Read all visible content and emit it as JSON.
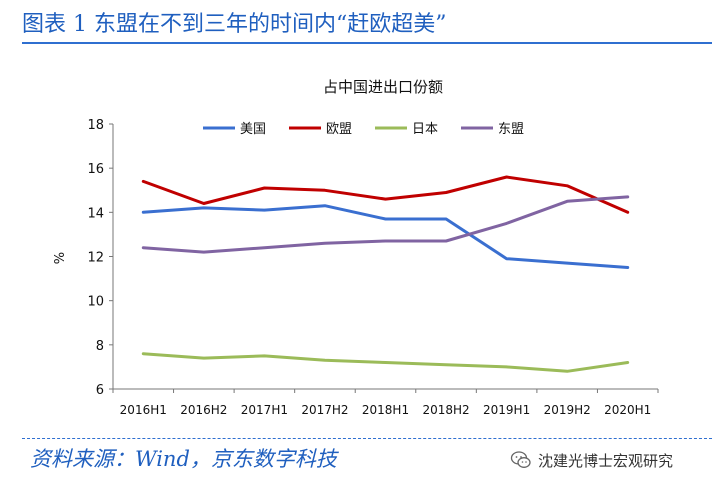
{
  "header": {
    "figure_label": "图表 1 东盟在不到三年的时间内“赶欧超美”"
  },
  "footer": {
    "source": "资料来源：Wind，京东数字科技",
    "watermark": "沈建光博士宏观研究",
    "watermark_icon": "wechat-icon"
  },
  "chart_data": {
    "type": "line",
    "title": "占中国进出口份额",
    "xlabel": "",
    "ylabel": "%",
    "ylim": [
      6,
      18
    ],
    "yticks": [
      6,
      8,
      10,
      12,
      14,
      16,
      18
    ],
    "grid": false,
    "legend_position": "top",
    "categories": [
      "2016H1",
      "2016H2",
      "2017H1",
      "2017H2",
      "2018H1",
      "2018H2",
      "2019H1",
      "2019H2",
      "2020H1"
    ],
    "series": [
      {
        "name": "美国",
        "color": "#3a6fd0",
        "values": [
          14.0,
          14.2,
          14.1,
          14.3,
          13.7,
          13.7,
          11.9,
          11.7,
          11.5
        ]
      },
      {
        "name": "欧盟",
        "color": "#c00000",
        "values": [
          15.4,
          14.4,
          15.1,
          15.0,
          14.6,
          14.9,
          15.6,
          15.2,
          14.0
        ]
      },
      {
        "name": "日本",
        "color": "#9bbb59",
        "values": [
          7.6,
          7.4,
          7.5,
          7.3,
          7.2,
          7.1,
          7.0,
          6.8,
          7.2
        ]
      },
      {
        "name": "东盟",
        "color": "#8064a2",
        "values": [
          12.4,
          12.2,
          12.4,
          12.6,
          12.7,
          12.7,
          13.5,
          14.5,
          14.7
        ]
      }
    ]
  }
}
